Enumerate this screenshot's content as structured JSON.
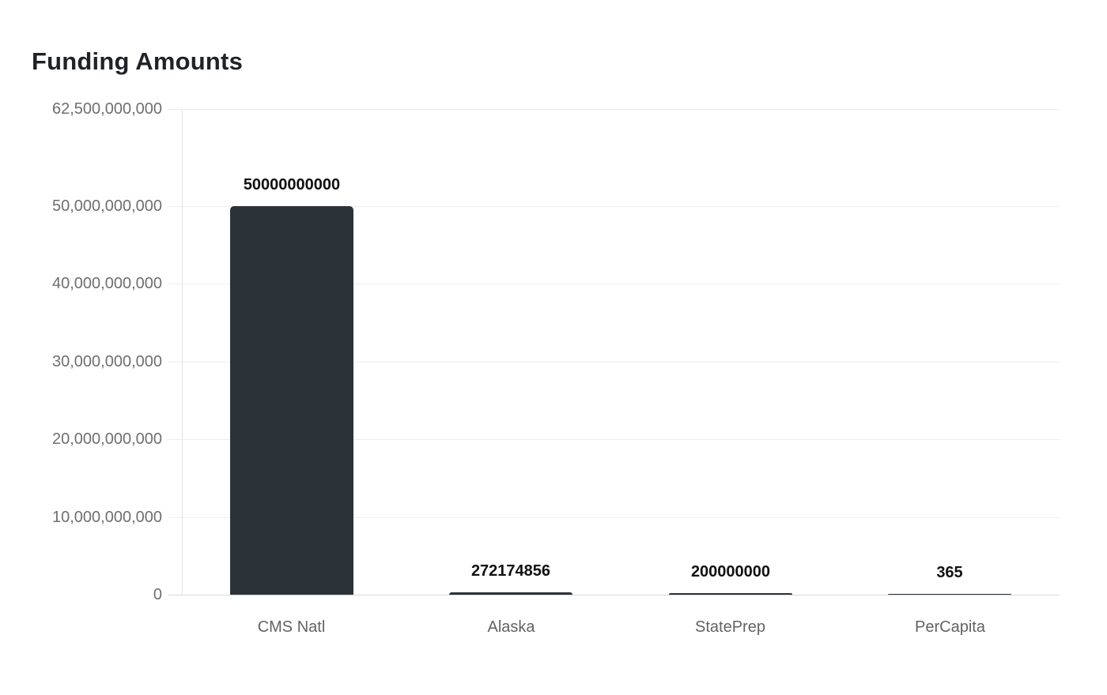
{
  "title": "Funding Amounts",
  "colors": {
    "title": "#1f2328",
    "bar": "#2c3338",
    "grid": "#eeeeee",
    "axis_line": "#e4e4e4",
    "baseline": "#d9d9d9",
    "y_tick_label": "#6f6f6f",
    "x_tick_label": "#636363",
    "value_label": "#111111",
    "background": "#ffffff"
  },
  "chart_data": {
    "type": "bar",
    "title": "Funding Amounts",
    "categories": [
      "CMS Natl",
      "Alaska",
      "StatePrep",
      "PerCapita"
    ],
    "values": [
      50000000000,
      272174856,
      200000000,
      365
    ],
    "value_labels": [
      "50000000000",
      "272174856",
      "200000000",
      "365"
    ],
    "xlabel": "",
    "ylabel": "",
    "ylim": [
      0,
      62500000000
    ],
    "yticks": [
      0,
      10000000000,
      20000000000,
      30000000000,
      40000000000,
      50000000000,
      62500000000
    ],
    "ytick_labels": [
      "0",
      "10,000,000,000",
      "20,000,000,000",
      "30,000,000,000",
      "40,000,000,000",
      "50,000,000,000",
      "62,500,000,000"
    ],
    "grid": true,
    "legend": false,
    "bar_labels_position": "above"
  }
}
